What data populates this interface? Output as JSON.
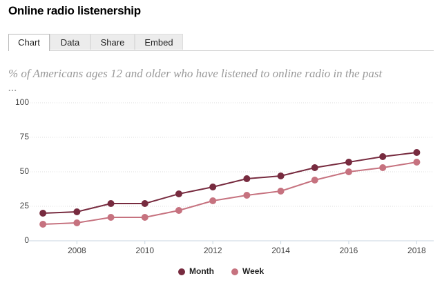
{
  "title": "Online radio listenership",
  "tabs": [
    "Chart",
    "Data",
    "Share",
    "Embed"
  ],
  "chart_data": {
    "type": "line",
    "subtitle": [
      "% of Americans ages 12 and older who have listened to online radio in the past",
      "..."
    ],
    "x": [
      2007,
      2008,
      2009,
      2010,
      2011,
      2012,
      2013,
      2014,
      2015,
      2016,
      2017,
      2018
    ],
    "series": [
      {
        "name": "Month",
        "color": "#772b3f",
        "values": [
          20,
          21,
          27,
          27,
          34,
          39,
          45,
          47,
          53,
          57,
          61,
          64
        ]
      },
      {
        "name": "Week",
        "color": "#c6727f",
        "values": [
          12,
          13,
          17,
          17,
          22,
          29,
          33,
          36,
          44,
          50,
          53,
          57
        ]
      }
    ],
    "xlim": [
      2006.55,
      2018.5
    ],
    "xticks": [
      2008,
      2010,
      2012,
      2014,
      2016,
      2018
    ],
    "ylim": [
      0,
      100
    ],
    "yticks": [
      0,
      25,
      50,
      75,
      100
    ],
    "grid": true,
    "legend": "bottom"
  }
}
